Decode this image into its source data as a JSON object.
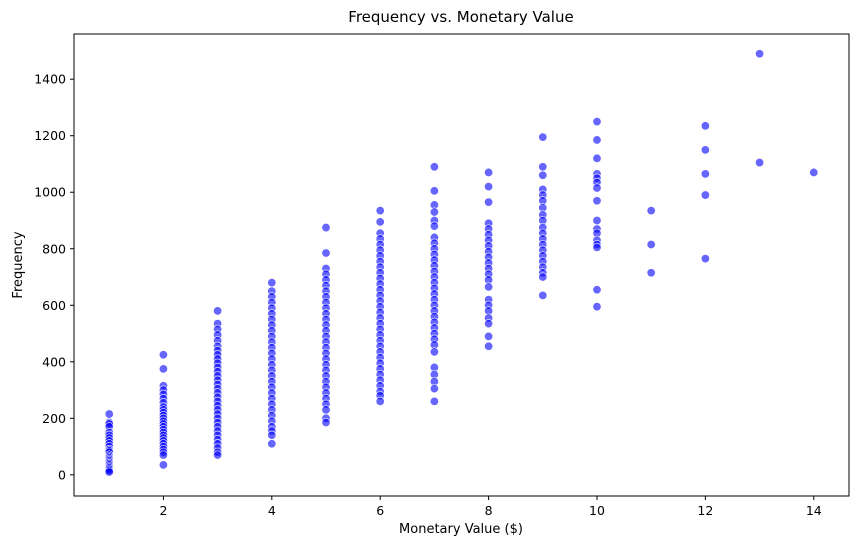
{
  "chart_data": {
    "type": "scatter",
    "title": "Frequency vs. Monetary Value",
    "xlabel": "Monetary Value ($)",
    "ylabel": "Frequency",
    "xlim": [
      0.35,
      14.65
    ],
    "ylim": [
      -75,
      1560
    ],
    "xticks": [
      2,
      4,
      6,
      8,
      10,
      12,
      14
    ],
    "yticks": [
      0,
      200,
      400,
      600,
      800,
      1000,
      1200,
      1400
    ],
    "grid": false,
    "legend": "none",
    "marker_color": "#0000ff",
    "marker_edge": "#ffffff",
    "marker_alpha": 0.6,
    "points": [
      [
        1,
        215
      ],
      [
        1,
        185
      ],
      [
        1,
        180
      ],
      [
        1,
        170
      ],
      [
        1,
        150
      ],
      [
        1,
        140
      ],
      [
        1,
        130
      ],
      [
        1,
        120
      ],
      [
        1,
        110
      ],
      [
        1,
        100
      ],
      [
        1,
        90
      ],
      [
        1,
        85
      ],
      [
        1,
        80
      ],
      [
        1,
        70
      ],
      [
        1,
        65
      ],
      [
        1,
        60
      ],
      [
        1,
        55
      ],
      [
        1,
        50
      ],
      [
        1,
        45
      ],
      [
        1,
        40
      ],
      [
        1,
        35
      ],
      [
        1,
        30
      ],
      [
        1,
        25
      ],
      [
        1,
        20
      ],
      [
        1,
        15
      ],
      [
        1,
        10
      ],
      [
        2,
        425
      ],
      [
        2,
        375
      ],
      [
        2,
        315
      ],
      [
        2,
        300
      ],
      [
        2,
        285
      ],
      [
        2,
        270
      ],
      [
        2,
        255
      ],
      [
        2,
        240
      ],
      [
        2,
        230
      ],
      [
        2,
        220
      ],
      [
        2,
        210
      ],
      [
        2,
        200
      ],
      [
        2,
        190
      ],
      [
        2,
        180
      ],
      [
        2,
        170
      ],
      [
        2,
        160
      ],
      [
        2,
        150
      ],
      [
        2,
        140
      ],
      [
        2,
        130
      ],
      [
        2,
        120
      ],
      [
        2,
        110
      ],
      [
        2,
        100
      ],
      [
        2,
        90
      ],
      [
        2,
        80
      ],
      [
        2,
        70
      ],
      [
        2,
        35
      ],
      [
        3,
        580
      ],
      [
        3,
        535
      ],
      [
        3,
        515
      ],
      [
        3,
        495
      ],
      [
        3,
        475
      ],
      [
        3,
        455
      ],
      [
        3,
        440
      ],
      [
        3,
        425
      ],
      [
        3,
        410
      ],
      [
        3,
        395
      ],
      [
        3,
        380
      ],
      [
        3,
        365
      ],
      [
        3,
        350
      ],
      [
        3,
        335
      ],
      [
        3,
        320
      ],
      [
        3,
        305
      ],
      [
        3,
        290
      ],
      [
        3,
        275
      ],
      [
        3,
        260
      ],
      [
        3,
        245
      ],
      [
        3,
        230
      ],
      [
        3,
        215
      ],
      [
        3,
        200
      ],
      [
        3,
        185
      ],
      [
        3,
        170
      ],
      [
        3,
        155
      ],
      [
        3,
        140
      ],
      [
        3,
        125
      ],
      [
        3,
        110
      ],
      [
        3,
        95
      ],
      [
        3,
        80
      ],
      [
        3,
        70
      ],
      [
        4,
        680
      ],
      [
        4,
        650
      ],
      [
        4,
        630
      ],
      [
        4,
        610
      ],
      [
        4,
        590
      ],
      [
        4,
        570
      ],
      [
        4,
        550
      ],
      [
        4,
        530
      ],
      [
        4,
        510
      ],
      [
        4,
        490
      ],
      [
        4,
        470
      ],
      [
        4,
        450
      ],
      [
        4,
        430
      ],
      [
        4,
        410
      ],
      [
        4,
        390
      ],
      [
        4,
        370
      ],
      [
        4,
        350
      ],
      [
        4,
        330
      ],
      [
        4,
        310
      ],
      [
        4,
        290
      ],
      [
        4,
        270
      ],
      [
        4,
        250
      ],
      [
        4,
        230
      ],
      [
        4,
        210
      ],
      [
        4,
        190
      ],
      [
        4,
        170
      ],
      [
        4,
        155
      ],
      [
        4,
        140
      ],
      [
        4,
        110
      ],
      [
        5,
        875
      ],
      [
        5,
        785
      ],
      [
        5,
        730
      ],
      [
        5,
        710
      ],
      [
        5,
        690
      ],
      [
        5,
        670
      ],
      [
        5,
        650
      ],
      [
        5,
        630
      ],
      [
        5,
        610
      ],
      [
        5,
        590
      ],
      [
        5,
        570
      ],
      [
        5,
        550
      ],
      [
        5,
        530
      ],
      [
        5,
        510
      ],
      [
        5,
        490
      ],
      [
        5,
        470
      ],
      [
        5,
        450
      ],
      [
        5,
        430
      ],
      [
        5,
        410
      ],
      [
        5,
        390
      ],
      [
        5,
        370
      ],
      [
        5,
        350
      ],
      [
        5,
        330
      ],
      [
        5,
        310
      ],
      [
        5,
        290
      ],
      [
        5,
        270
      ],
      [
        5,
        250
      ],
      [
        5,
        230
      ],
      [
        5,
        200
      ],
      [
        5,
        185
      ],
      [
        6,
        935
      ],
      [
        6,
        895
      ],
      [
        6,
        855
      ],
      [
        6,
        835
      ],
      [
        6,
        815
      ],
      [
        6,
        795
      ],
      [
        6,
        775
      ],
      [
        6,
        755
      ],
      [
        6,
        735
      ],
      [
        6,
        715
      ],
      [
        6,
        695
      ],
      [
        6,
        675
      ],
      [
        6,
        655
      ],
      [
        6,
        635
      ],
      [
        6,
        615
      ],
      [
        6,
        595
      ],
      [
        6,
        575
      ],
      [
        6,
        555
      ],
      [
        6,
        535
      ],
      [
        6,
        515
      ],
      [
        6,
        495
      ],
      [
        6,
        475
      ],
      [
        6,
        455
      ],
      [
        6,
        435
      ],
      [
        6,
        415
      ],
      [
        6,
        395
      ],
      [
        6,
        375
      ],
      [
        6,
        355
      ],
      [
        6,
        335
      ],
      [
        6,
        315
      ],
      [
        6,
        295
      ],
      [
        6,
        280
      ],
      [
        6,
        260
      ],
      [
        7,
        1090
      ],
      [
        7,
        1005
      ],
      [
        7,
        955
      ],
      [
        7,
        930
      ],
      [
        7,
        900
      ],
      [
        7,
        880
      ],
      [
        7,
        840
      ],
      [
        7,
        820
      ],
      [
        7,
        800
      ],
      [
        7,
        780
      ],
      [
        7,
        760
      ],
      [
        7,
        740
      ],
      [
        7,
        720
      ],
      [
        7,
        700
      ],
      [
        7,
        680
      ],
      [
        7,
        660
      ],
      [
        7,
        640
      ],
      [
        7,
        620
      ],
      [
        7,
        600
      ],
      [
        7,
        580
      ],
      [
        7,
        560
      ],
      [
        7,
        540
      ],
      [
        7,
        520
      ],
      [
        7,
        500
      ],
      [
        7,
        480
      ],
      [
        7,
        460
      ],
      [
        7,
        435
      ],
      [
        7,
        380
      ],
      [
        7,
        355
      ],
      [
        7,
        330
      ],
      [
        7,
        305
      ],
      [
        7,
        260
      ],
      [
        8,
        1070
      ],
      [
        8,
        1020
      ],
      [
        8,
        965
      ],
      [
        8,
        890
      ],
      [
        8,
        870
      ],
      [
        8,
        850
      ],
      [
        8,
        830
      ],
      [
        8,
        810
      ],
      [
        8,
        790
      ],
      [
        8,
        770
      ],
      [
        8,
        750
      ],
      [
        8,
        730
      ],
      [
        8,
        710
      ],
      [
        8,
        690
      ],
      [
        8,
        665
      ],
      [
        8,
        620
      ],
      [
        8,
        600
      ],
      [
        8,
        580
      ],
      [
        8,
        555
      ],
      [
        8,
        535
      ],
      [
        8,
        490
      ],
      [
        8,
        455
      ],
      [
        9,
        1195
      ],
      [
        9,
        1090
      ],
      [
        9,
        1060
      ],
      [
        9,
        1010
      ],
      [
        9,
        990
      ],
      [
        9,
        970
      ],
      [
        9,
        945
      ],
      [
        9,
        920
      ],
      [
        9,
        900
      ],
      [
        9,
        875
      ],
      [
        9,
        855
      ],
      [
        9,
        835
      ],
      [
        9,
        815
      ],
      [
        9,
        795
      ],
      [
        9,
        775
      ],
      [
        9,
        755
      ],
      [
        9,
        735
      ],
      [
        9,
        715
      ],
      [
        9,
        700
      ],
      [
        9,
        635
      ],
      [
        10,
        1250
      ],
      [
        10,
        1185
      ],
      [
        10,
        1120
      ],
      [
        10,
        1065
      ],
      [
        10,
        1050
      ],
      [
        10,
        1035
      ],
      [
        10,
        1015
      ],
      [
        10,
        970
      ],
      [
        10,
        900
      ],
      [
        10,
        870
      ],
      [
        10,
        855
      ],
      [
        10,
        830
      ],
      [
        10,
        815
      ],
      [
        10,
        805
      ],
      [
        10,
        655
      ],
      [
        10,
        595
      ],
      [
        11,
        935
      ],
      [
        11,
        815
      ],
      [
        11,
        715
      ],
      [
        12,
        1235
      ],
      [
        12,
        1150
      ],
      [
        12,
        1065
      ],
      [
        12,
        990
      ],
      [
        12,
        765
      ],
      [
        13,
        1490
      ],
      [
        13,
        1105
      ],
      [
        14,
        1070
      ]
    ]
  }
}
